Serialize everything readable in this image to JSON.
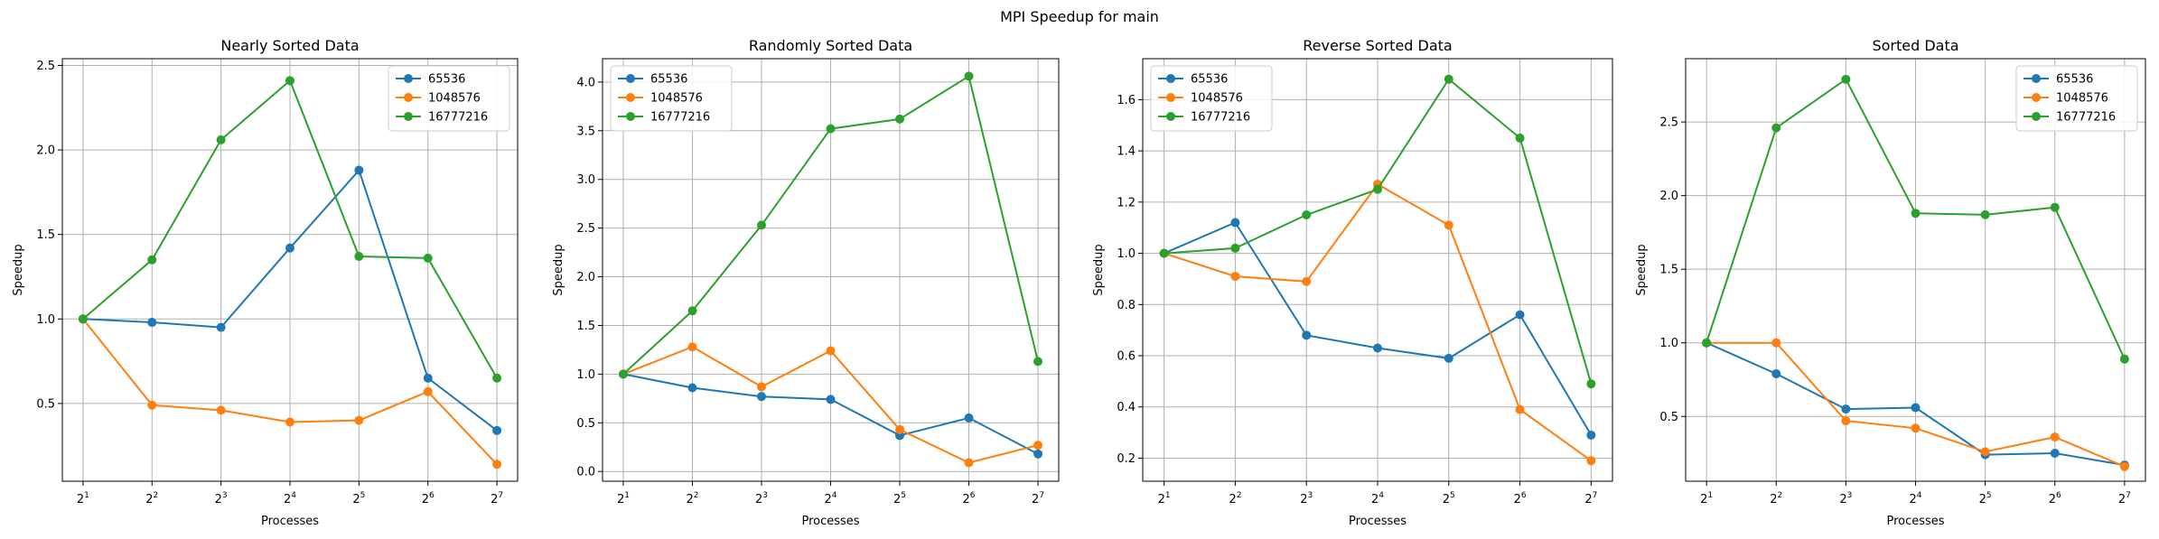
{
  "figure": {
    "suptitle": "MPI Speedup for main"
  },
  "colors": {
    "series": [
      "#1f77b4",
      "#ff7f0e",
      "#2ca02c"
    ],
    "grid": "#b0b0b0",
    "axis": "#000000"
  },
  "chart_data": [
    {
      "type": "line",
      "title": "Nearly Sorted Data",
      "xlabel": "Processes",
      "ylabel": "Speedup",
      "x": [
        2,
        4,
        8,
        16,
        32,
        64,
        128
      ],
      "x_tick_labels": [
        "2",
        "2",
        "2",
        "2",
        "2",
        "2",
        "2"
      ],
      "x_tick_exponents": [
        "1",
        "2",
        "3",
        "4",
        "5",
        "6",
        "7"
      ],
      "x_scale": "log2",
      "ylim": [
        0.04,
        2.54
      ],
      "yticks": [
        0.5,
        1.0,
        1.5,
        2.0,
        2.5
      ],
      "ytick_labels": [
        "0.5",
        "1.0",
        "1.5",
        "2.0",
        "2.5"
      ],
      "legend": "top-right",
      "grid": true,
      "series": [
        {
          "name": "65536",
          "values": [
            1.0,
            0.98,
            0.95,
            1.42,
            1.88,
            0.65,
            0.34
          ]
        },
        {
          "name": "1048576",
          "values": [
            1.0,
            0.49,
            0.46,
            0.39,
            0.4,
            0.57,
            0.14
          ]
        },
        {
          "name": "16777216",
          "values": [
            1.0,
            1.35,
            2.06,
            2.41,
            1.37,
            1.36,
            0.65
          ]
        }
      ]
    },
    {
      "type": "line",
      "title": "Randomly Sorted Data",
      "xlabel": "Processes",
      "ylabel": "Speedup",
      "x": [
        2,
        4,
        8,
        16,
        32,
        64,
        128
      ],
      "x_tick_labels": [
        "2",
        "2",
        "2",
        "2",
        "2",
        "2",
        "2"
      ],
      "x_tick_exponents": [
        "1",
        "2",
        "3",
        "4",
        "5",
        "6",
        "7"
      ],
      "x_scale": "log2",
      "ylim": [
        -0.1,
        4.24
      ],
      "yticks": [
        0.0,
        0.5,
        1.0,
        1.5,
        2.0,
        2.5,
        3.0,
        3.5,
        4.0
      ],
      "ytick_labels": [
        "0.0",
        "0.5",
        "1.0",
        "1.5",
        "2.0",
        "2.5",
        "3.0",
        "3.5",
        "4.0"
      ],
      "legend": "top-left",
      "grid": true,
      "series": [
        {
          "name": "65536",
          "values": [
            1.0,
            0.86,
            0.77,
            0.74,
            0.37,
            0.55,
            0.18
          ]
        },
        {
          "name": "1048576",
          "values": [
            1.0,
            1.28,
            0.87,
            1.24,
            0.43,
            0.09,
            0.27
          ]
        },
        {
          "name": "16777216",
          "values": [
            1.0,
            1.65,
            2.53,
            3.52,
            3.62,
            4.06,
            1.13
          ]
        }
      ]
    },
    {
      "type": "line",
      "title": "Reverse Sorted Data",
      "xlabel": "Processes",
      "ylabel": "Speedup",
      "x": [
        2,
        4,
        8,
        16,
        32,
        64,
        128
      ],
      "x_tick_labels": [
        "2",
        "2",
        "2",
        "2",
        "2",
        "2",
        "2"
      ],
      "x_tick_exponents": [
        "1",
        "2",
        "3",
        "4",
        "5",
        "6",
        "7"
      ],
      "x_scale": "log2",
      "ylim": [
        0.11,
        1.76
      ],
      "yticks": [
        0.2,
        0.4,
        0.6,
        0.8,
        1.0,
        1.2,
        1.4,
        1.6
      ],
      "ytick_labels": [
        "0.2",
        "0.4",
        "0.6",
        "0.8",
        "1.0",
        "1.2",
        "1.4",
        "1.6"
      ],
      "legend": "top-left",
      "grid": true,
      "series": [
        {
          "name": "65536",
          "values": [
            1.0,
            1.12,
            0.68,
            0.63,
            0.59,
            0.76,
            0.29
          ]
        },
        {
          "name": "1048576",
          "values": [
            1.0,
            0.91,
            0.89,
            1.27,
            1.11,
            0.39,
            0.19
          ]
        },
        {
          "name": "16777216",
          "values": [
            1.0,
            1.02,
            1.15,
            1.25,
            1.68,
            1.45,
            0.49
          ]
        }
      ]
    },
    {
      "type": "line",
      "title": "Sorted Data",
      "xlabel": "Processes",
      "ylabel": "Speedup",
      "x": [
        2,
        4,
        8,
        16,
        32,
        64,
        128
      ],
      "x_tick_labels": [
        "2",
        "2",
        "2",
        "2",
        "2",
        "2",
        "2"
      ],
      "x_tick_exponents": [
        "1",
        "2",
        "3",
        "4",
        "5",
        "6",
        "7"
      ],
      "x_scale": "log2",
      "ylim": [
        0.06,
        2.93
      ],
      "yticks": [
        0.5,
        1.0,
        1.5,
        2.0,
        2.5
      ],
      "ytick_labels": [
        "0.5",
        "1.0",
        "1.5",
        "2.0",
        "2.5"
      ],
      "legend": "top-right",
      "grid": true,
      "series": [
        {
          "name": "65536",
          "values": [
            1.0,
            0.79,
            0.55,
            0.56,
            0.24,
            0.25,
            0.17
          ]
        },
        {
          "name": "1048576",
          "values": [
            1.0,
            1.0,
            0.47,
            0.42,
            0.26,
            0.36,
            0.16
          ]
        },
        {
          "name": "16777216",
          "values": [
            1.0,
            2.46,
            2.79,
            1.88,
            1.87,
            1.92,
            0.89
          ]
        }
      ]
    }
  ]
}
